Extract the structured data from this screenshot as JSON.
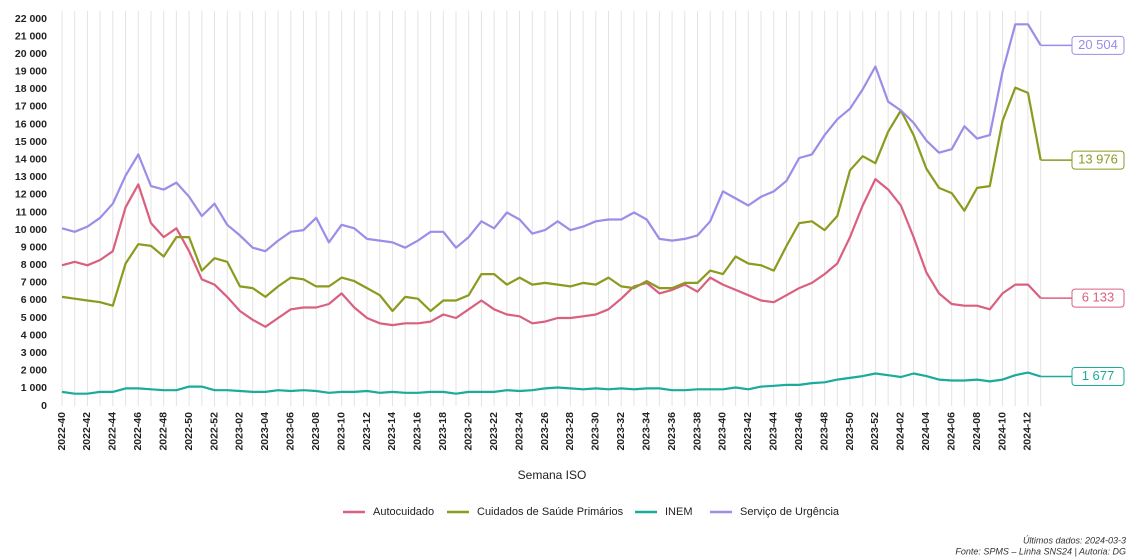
{
  "chart_data": {
    "type": "line",
    "x_label": "Semana ISO",
    "footnotes": [
      "Últimos dados: 2024-03-3",
      "Fonte: SPMS – Linha SNS24 | Autoria: DG"
    ],
    "categories": [
      "2022-40",
      null,
      "2022-42",
      null,
      "2022-44",
      null,
      "2022-46",
      null,
      "2022-48",
      null,
      "2022-50",
      null,
      "2022-52",
      null,
      "2023-02",
      null,
      "2023-04",
      null,
      "2023-06",
      null,
      "2023-08",
      null,
      "2023-10",
      null,
      "2023-12",
      null,
      "2023-14",
      null,
      "2023-16",
      null,
      "2023-18",
      null,
      "2023-20",
      null,
      "2023-22",
      null,
      "2023-24",
      null,
      "2023-26",
      null,
      "2023-28",
      null,
      "2023-30",
      null,
      "2023-32",
      null,
      "2023-34",
      null,
      "2023-36",
      null,
      "2023-38",
      null,
      "2023-40",
      null,
      "2023-42",
      null,
      "2023-44",
      null,
      "2023-46",
      null,
      "2023-48",
      null,
      "2023-50",
      null,
      "2023-52",
      null,
      "2024-02",
      null,
      "2024-04",
      null,
      "2024-06",
      null,
      "2024-08",
      null,
      "2024-10",
      null,
      "2024-12",
      null
    ],
    "series": [
      {
        "name": "Autocuidado",
        "color": "#d9607f",
        "values": [
          8000,
          8200,
          8000,
          8300,
          8800,
          11300,
          12600,
          10400,
          9600,
          10100,
          8800,
          7200,
          6900,
          6200,
          5400,
          4900,
          4500,
          5000,
          5500,
          5600,
          5600,
          5800,
          6400,
          5600,
          5000,
          4700,
          4600,
          4700,
          4700,
          4800,
          5200,
          5000,
          5500,
          6000,
          5500,
          5200,
          5100,
          4700,
          4800,
          5000,
          5000,
          5100,
          5200,
          5500,
          6100,
          6800,
          7000,
          6400,
          6600,
          6900,
          6500,
          7300,
          6900,
          6600,
          6300,
          6000,
          5900,
          6300,
          6700,
          7000,
          7500,
          8100,
          9600,
          11400,
          12900,
          12300,
          11400,
          9600,
          7600,
          6400,
          5800,
          5700,
          5700,
          5500,
          6400,
          6900,
          6900,
          6133
        ],
        "value_labels": [
          null,
          null,
          null,
          null,
          null,
          null,
          null,
          null,
          null,
          null,
          null,
          null,
          null,
          null,
          null,
          null,
          null,
          null,
          null,
          null,
          null,
          null,
          null,
          null,
          null,
          null,
          null,
          null,
          null,
          null,
          null,
          null,
          null,
          null,
          null,
          null,
          null,
          null,
          null,
          null,
          null,
          null,
          null,
          null,
          null,
          null,
          null,
          null,
          null,
          null,
          null,
          null,
          null,
          null,
          null,
          null,
          null,
          null,
          null,
          null,
          null,
          null,
          null,
          null,
          null,
          null,
          null,
          null,
          null,
          null,
          null,
          null,
          null,
          null,
          null,
          null,
          null,
          "6 133"
        ]
      },
      {
        "name": "Cuidados de Saúde Primários",
        "color": "#8c9a1e",
        "values": [
          6200,
          6100,
          6000,
          5900,
          5700,
          8100,
          9200,
          9100,
          8500,
          9600,
          9600,
          7700,
          8400,
          8200,
          6800,
          6700,
          6200,
          6800,
          7300,
          7200,
          6800,
          6800,
          7300,
          7100,
          6700,
          6300,
          5400,
          6200,
          6100,
          5400,
          6000,
          6000,
          6300,
          7500,
          7500,
          6900,
          7300,
          6900,
          7000,
          6900,
          6800,
          7000,
          6900,
          7300,
          6800,
          6700,
          7100,
          6700,
          6700,
          7000,
          7000,
          7700,
          7500,
          8500,
          8100,
          8000,
          7700,
          9100,
          10400,
          10500,
          10000,
          10800,
          13400,
          14200,
          13800,
          15600,
          16800,
          15400,
          13500,
          12400,
          12100,
          11100,
          12400,
          12500,
          16200,
          18100,
          17800,
          13976
        ],
        "value_labels": [
          null,
          null,
          null,
          null,
          null,
          null,
          null,
          null,
          null,
          null,
          null,
          null,
          null,
          null,
          null,
          null,
          null,
          null,
          null,
          null,
          null,
          null,
          null,
          null,
          null,
          null,
          null,
          null,
          null,
          null,
          null,
          null,
          null,
          null,
          null,
          null,
          null,
          null,
          null,
          null,
          null,
          null,
          null,
          null,
          null,
          null,
          null,
          null,
          null,
          null,
          null,
          null,
          null,
          null,
          null,
          null,
          null,
          null,
          null,
          null,
          null,
          null,
          null,
          null,
          null,
          null,
          null,
          null,
          null,
          null,
          null,
          null,
          null,
          null,
          null,
          null,
          null,
          "13 976"
        ]
      },
      {
        "name": "INEM",
        "color": "#1aab9b",
        "values": [
          800,
          700,
          700,
          800,
          800,
          1000,
          1000,
          950,
          900,
          900,
          1100,
          1100,
          900,
          900,
          850,
          800,
          800,
          900,
          850,
          900,
          850,
          750,
          800,
          800,
          850,
          750,
          800,
          750,
          750,
          800,
          800,
          700,
          800,
          800,
          800,
          900,
          850,
          900,
          1000,
          1050,
          1000,
          950,
          1000,
          950,
          1000,
          950,
          1000,
          1000,
          900,
          900,
          950,
          950,
          950,
          1050,
          950,
          1100,
          1150,
          1200,
          1200,
          1300,
          1350,
          1500,
          1600,
          1700,
          1850,
          1750,
          1650,
          1850,
          1700,
          1500,
          1450,
          1450,
          1500,
          1400,
          1500,
          1750,
          1900,
          1677
        ],
        "value_labels": [
          null,
          null,
          null,
          null,
          null,
          null,
          null,
          null,
          null,
          null,
          null,
          null,
          null,
          null,
          null,
          null,
          null,
          null,
          null,
          null,
          null,
          null,
          null,
          null,
          null,
          null,
          null,
          null,
          null,
          null,
          null,
          null,
          null,
          null,
          null,
          null,
          null,
          null,
          null,
          null,
          null,
          null,
          null,
          null,
          null,
          null,
          null,
          null,
          null,
          null,
          null,
          null,
          null,
          null,
          null,
          null,
          null,
          null,
          null,
          null,
          null,
          null,
          null,
          null,
          null,
          null,
          null,
          null,
          null,
          null,
          null,
          null,
          null,
          null,
          null,
          null,
          null,
          "1 677"
        ]
      },
      {
        "name": "Serviço de Urgência",
        "color": "#9b8de8",
        "values": [
          10100,
          9900,
          10200,
          10700,
          11500,
          13100,
          14300,
          12500,
          12300,
          12700,
          11900,
          10800,
          11500,
          10300,
          9700,
          9000,
          8800,
          9400,
          9900,
          10000,
          10700,
          9300,
          10300,
          10100,
          9500,
          9400,
          9300,
          9000,
          9400,
          9900,
          9900,
          9000,
          9600,
          10500,
          10100,
          11000,
          10600,
          9800,
          10000,
          10500,
          10000,
          10200,
          10500,
          10600,
          10600,
          11000,
          10600,
          9500,
          9400,
          9500,
          9700,
          10500,
          12200,
          11800,
          11400,
          11900,
          12200,
          12800,
          14100,
          14300,
          15400,
          16300,
          16900,
          18000,
          19300,
          17300,
          16800,
          16100,
          15100,
          14400,
          14600,
          15900,
          15200,
          15400,
          19000,
          21700,
          21700,
          20504
        ],
        "value_labels": [
          null,
          null,
          null,
          null,
          null,
          null,
          null,
          null,
          null,
          null,
          null,
          null,
          null,
          null,
          null,
          null,
          null,
          null,
          null,
          null,
          null,
          null,
          null,
          null,
          null,
          null,
          null,
          null,
          null,
          null,
          null,
          null,
          null,
          null,
          null,
          null,
          null,
          null,
          null,
          null,
          null,
          null,
          null,
          null,
          null,
          null,
          null,
          null,
          null,
          null,
          null,
          null,
          null,
          null,
          null,
          null,
          null,
          null,
          null,
          null,
          null,
          null,
          null,
          null,
          null,
          null,
          null,
          null,
          null,
          null,
          null,
          null,
          null,
          null,
          null,
          null,
          null,
          "20 504"
        ]
      }
    ],
    "ylim": [
      0,
      22000
    ],
    "yticks": [
      0,
      {
        "value": 1000,
        "label": "1 000"
      },
      {
        "value": 2000,
        "label": "2 000"
      },
      {
        "value": 3000,
        "label": "3 000"
      },
      {
        "value": 4000,
        "label": "4 000"
      },
      {
        "value": 5000,
        "label": "5 000"
      },
      {
        "value": 6000,
        "label": "6 000"
      },
      {
        "value": 7000,
        "label": "7 000"
      },
      {
        "value": 8000,
        "label": "8 000"
      },
      {
        "value": 9000,
        "label": "9 000"
      },
      {
        "value": 10000,
        "label": "10 000"
      },
      {
        "value": 11000,
        "label": "11 000"
      },
      {
        "value": 12000,
        "label": "12 000"
      },
      {
        "value": 13000,
        "label": "13 000"
      },
      {
        "value": 14000,
        "label": "14 000"
      },
      {
        "value": 15000,
        "label": "15 000"
      },
      {
        "value": 16000,
        "label": "16 000"
      },
      {
        "value": 17000,
        "label": "17 000"
      },
      {
        "value": 18000,
        "label": "18 000"
      },
      {
        "value": 19000,
        "label": "19 000"
      },
      {
        "value": 20000,
        "label": "20 000"
      },
      {
        "value": 21000,
        "label": "21 000"
      },
      {
        "value": 22000,
        "label": "22 000"
      }
    ],
    "grid": "x",
    "legend": "bottom"
  }
}
